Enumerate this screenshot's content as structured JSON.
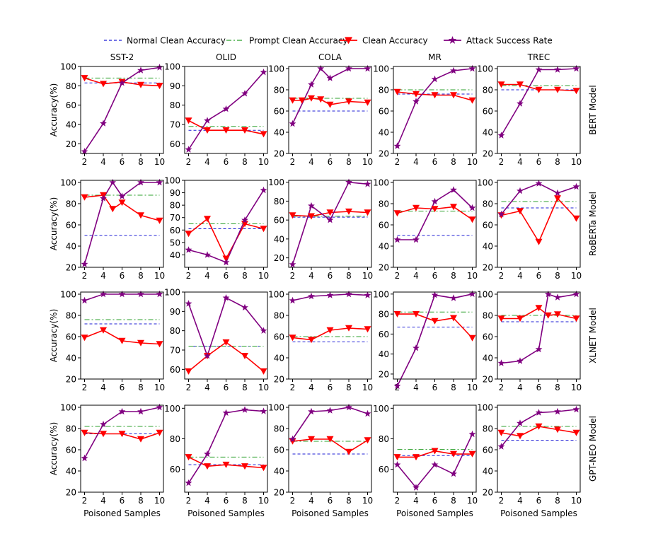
{
  "legend": [
    {
      "label": "Normal Clean Accuracy",
      "key": "normal",
      "color": "#1f1fd6",
      "dash": "4,3"
    },
    {
      "label": "Prompt Clean Accuracy",
      "key": "prompt",
      "color": "#2ca02c",
      "dash": "7,3,2,3"
    },
    {
      "label": "Clean Accuracy",
      "key": "clean",
      "color": "#ff0000",
      "marker": "triangle-down"
    },
    {
      "label": "Attack Success Rate",
      "key": "asr",
      "color": "#800080",
      "marker": "star"
    }
  ],
  "column_titles": [
    "SST-2",
    "OLID",
    "COLA",
    "MR",
    "TREC"
  ],
  "row_labels": [
    "BERT Model",
    "RoBERTa Model",
    "XLNET Model",
    "GPT-NEO Model"
  ],
  "ylabel": "Accuracy(%)",
  "xlabel": "Poisoned Samples",
  "chart_data": [
    {
      "type": "line",
      "model": "BERT Model",
      "dataset": "SST-2",
      "xlim": [
        2,
        10
      ],
      "ylim": [
        10,
        100
      ],
      "yticks": [
        20,
        40,
        60,
        80,
        100
      ],
      "xticks": [
        2,
        4,
        6,
        8,
        10
      ],
      "normal": 83,
      "prompt": 88,
      "clean": {
        "x": [
          2,
          4,
          6,
          8,
          10
        ],
        "y": [
          88,
          82,
          84,
          81,
          80
        ]
      },
      "asr": {
        "x": [
          2,
          4,
          6,
          8,
          10
        ],
        "y": [
          12,
          41,
          83,
          96,
          99
        ]
      }
    },
    {
      "type": "line",
      "model": "BERT Model",
      "dataset": "OLID",
      "xlim": [
        2,
        10
      ],
      "ylim": [
        55,
        100
      ],
      "yticks": [
        60,
        70,
        80,
        90,
        100
      ],
      "xticks": [
        2,
        4,
        6,
        8,
        10
      ],
      "normal": 67,
      "prompt": 69,
      "clean": {
        "x": [
          2,
          4,
          6,
          8,
          10
        ],
        "y": [
          72,
          67,
          67,
          67,
          65
        ]
      },
      "asr": {
        "x": [
          2,
          4,
          6,
          8,
          10
        ],
        "y": [
          57,
          72,
          78,
          86,
          97
        ]
      }
    },
    {
      "type": "line",
      "model": "BERT Model",
      "dataset": "COLA",
      "xlim": [
        2,
        10
      ],
      "ylim": [
        20,
        102
      ],
      "yticks": [
        20,
        40,
        60,
        80,
        100
      ],
      "xticks": [
        2,
        4,
        6,
        8,
        10
      ],
      "normal": 60,
      "prompt": 72,
      "clean": {
        "x": [
          2,
          3,
          4,
          5,
          6,
          8,
          10
        ],
        "y": [
          70,
          70,
          72,
          71,
          66,
          69,
          68
        ]
      },
      "asr": {
        "x": [
          2,
          4,
          5,
          6,
          8,
          10
        ],
        "y": [
          48,
          85,
          100,
          91,
          100,
          100
        ]
      }
    },
    {
      "type": "line",
      "model": "BERT Model",
      "dataset": "MR",
      "xlim": [
        2,
        10
      ],
      "ylim": [
        20,
        102
      ],
      "yticks": [
        20,
        40,
        60,
        80,
        100
      ],
      "xticks": [
        2,
        4,
        6,
        8,
        10
      ],
      "normal": 76,
      "prompt": 80,
      "clean": {
        "x": [
          2,
          4,
          6,
          8,
          10
        ],
        "y": [
          78,
          76,
          75,
          75,
          70
        ]
      },
      "asr": {
        "x": [
          2,
          4,
          6,
          8,
          10
        ],
        "y": [
          27,
          69,
          90,
          98,
          100
        ]
      }
    },
    {
      "type": "line",
      "model": "BERT Model",
      "dataset": "TREC",
      "xlim": [
        2,
        10
      ],
      "ylim": [
        20,
        102
      ],
      "yticks": [
        20,
        40,
        60,
        80,
        100
      ],
      "xticks": [
        2,
        4,
        6,
        8,
        10
      ],
      "normal": 80,
      "prompt": 84,
      "clean": {
        "x": [
          2,
          4,
          6,
          8,
          10
        ],
        "y": [
          85,
          85,
          80,
          80,
          79
        ]
      },
      "asr": {
        "x": [
          2,
          4,
          6,
          8,
          10
        ],
        "y": [
          37,
          67,
          99,
          99,
          100
        ]
      }
    },
    {
      "type": "line",
      "model": "RoBERTa Model",
      "dataset": "SST-2",
      "xlim": [
        2,
        10
      ],
      "ylim": [
        20,
        102
      ],
      "yticks": [
        20,
        40,
        60,
        80,
        100
      ],
      "xticks": [
        2,
        4,
        6,
        8,
        10
      ],
      "normal": 50,
      "prompt": 88,
      "clean": {
        "x": [
          2,
          4,
          5,
          6,
          8,
          10
        ],
        "y": [
          86,
          88,
          75,
          81,
          69,
          64
        ]
      },
      "asr": {
        "x": [
          2,
          4,
          5,
          6,
          8,
          10
        ],
        "y": [
          23,
          85,
          100,
          87,
          100,
          100
        ]
      }
    },
    {
      "type": "line",
      "model": "RoBERTa Model",
      "dataset": "OLID",
      "xlim": [
        2,
        10
      ],
      "ylim": [
        30,
        100
      ],
      "yticks": [
        40,
        50,
        60,
        70,
        80,
        90,
        100
      ],
      "xticks": [
        2,
        4,
        6,
        8,
        10
      ],
      "normal": 61,
      "prompt": 65,
      "clean": {
        "x": [
          2,
          4,
          6,
          8,
          10
        ],
        "y": [
          57,
          69,
          37,
          65,
          61
        ]
      },
      "asr": {
        "x": [
          2,
          4,
          6,
          8,
          10
        ],
        "y": [
          44,
          40,
          34,
          68,
          92
        ]
      }
    },
    {
      "type": "line",
      "model": "RoBERTa Model",
      "dataset": "COLA",
      "xlim": [
        2,
        10
      ],
      "ylim": [
        10,
        102
      ],
      "yticks": [
        20,
        40,
        60,
        80,
        100
      ],
      "xticks": [
        2,
        4,
        6,
        8,
        10
      ],
      "normal": 63,
      "prompt": 64,
      "clean": {
        "x": [
          2,
          4,
          6,
          8,
          10
        ],
        "y": [
          65,
          64,
          68,
          69,
          68
        ]
      },
      "asr": {
        "x": [
          2,
          4,
          6,
          8,
          10
        ],
        "y": [
          13,
          75,
          60,
          100,
          98
        ]
      }
    },
    {
      "type": "line",
      "model": "RoBERTa Model",
      "dataset": "MR",
      "xlim": [
        2,
        10
      ],
      "ylim": [
        20,
        102
      ],
      "yticks": [
        20,
        40,
        60,
        80,
        100
      ],
      "xticks": [
        2,
        4,
        6,
        8,
        10
      ],
      "normal": 50,
      "prompt": 73,
      "clean": {
        "x": [
          2,
          4,
          6,
          8,
          10
        ],
        "y": [
          71,
          76,
          75,
          77,
          65
        ]
      },
      "asr": {
        "x": [
          2,
          4,
          6,
          8,
          10
        ],
        "y": [
          46,
          46,
          82,
          93,
          76
        ]
      }
    },
    {
      "type": "line",
      "model": "RoBERTa Model",
      "dataset": "TREC",
      "xlim": [
        2,
        10
      ],
      "ylim": [
        20,
        102
      ],
      "yticks": [
        20,
        40,
        60,
        80,
        100
      ],
      "xticks": [
        2,
        4,
        6,
        8,
        10
      ],
      "normal": 76,
      "prompt": 82,
      "clean": {
        "x": [
          2,
          4,
          6,
          8,
          10
        ],
        "y": [
          69,
          73,
          44,
          85,
          66
        ]
      },
      "asr": {
        "x": [
          2,
          4,
          6,
          8,
          10
        ],
        "y": [
          70,
          92,
          99,
          90,
          96
        ]
      }
    },
    {
      "type": "line",
      "model": "XLNET Model",
      "dataset": "SST-2",
      "xlim": [
        2,
        10
      ],
      "ylim": [
        20,
        102
      ],
      "yticks": [
        20,
        40,
        60,
        80,
        100
      ],
      "xticks": [
        2,
        4,
        6,
        8,
        10
      ],
      "normal": 72,
      "prompt": 76,
      "clean": {
        "x": [
          2,
          4,
          6,
          8,
          10
        ],
        "y": [
          59,
          66,
          56,
          54,
          53
        ]
      },
      "asr": {
        "x": [
          2,
          4,
          6,
          8,
          10
        ],
        "y": [
          94,
          100,
          100,
          100,
          100
        ]
      }
    },
    {
      "type": "line",
      "model": "XLNET Model",
      "dataset": "OLID",
      "xlim": [
        2,
        10
      ],
      "ylim": [
        55,
        100
      ],
      "yticks": [
        60,
        70,
        80,
        90,
        100
      ],
      "xticks": [
        2,
        4,
        6,
        8,
        10
      ],
      "normal": 72,
      "prompt": 72,
      "clean": {
        "x": [
          2,
          4,
          6,
          8,
          10
        ],
        "y": [
          59,
          67,
          74,
          67,
          59
        ]
      },
      "asr": {
        "x": [
          2,
          4,
          6,
          8,
          10
        ],
        "y": [
          94,
          67,
          97,
          92,
          80
        ]
      }
    },
    {
      "type": "line",
      "model": "XLNET Model",
      "dataset": "COLA",
      "xlim": [
        2,
        10
      ],
      "ylim": [
        20,
        102
      ],
      "yticks": [
        20,
        40,
        60,
        80,
        100
      ],
      "xticks": [
        2,
        4,
        6,
        8,
        10
      ],
      "normal": 55,
      "prompt": 60,
      "clean": {
        "x": [
          2,
          4,
          6,
          8,
          10
        ],
        "y": [
          59,
          57,
          66,
          68,
          67
        ]
      },
      "asr": {
        "x": [
          2,
          4,
          6,
          8,
          10
        ],
        "y": [
          94,
          98,
          99,
          100,
          99
        ]
      }
    },
    {
      "type": "line",
      "model": "XLNET Model",
      "dataset": "MR",
      "xlim": [
        2,
        10
      ],
      "ylim": [
        15,
        102
      ],
      "yticks": [
        20,
        40,
        60,
        80,
        100
      ],
      "xticks": [
        2,
        4,
        6,
        8,
        10
      ],
      "normal": 67,
      "prompt": 82,
      "clean": {
        "x": [
          2,
          4,
          6,
          8,
          10
        ],
        "y": [
          80,
          80,
          73,
          76,
          56
        ]
      },
      "asr": {
        "x": [
          2,
          4,
          6,
          8,
          10
        ],
        "y": [
          8,
          46,
          99,
          96,
          100
        ]
      }
    },
    {
      "type": "line",
      "model": "XLNET Model",
      "dataset": "TREC",
      "xlim": [
        2,
        10
      ],
      "ylim": [
        20,
        102
      ],
      "yticks": [
        20,
        40,
        60,
        80,
        100
      ],
      "xticks": [
        2,
        4,
        6,
        8,
        10
      ],
      "normal": 74,
      "prompt": 80,
      "clean": {
        "x": [
          2,
          4,
          6,
          7,
          8,
          10
        ],
        "y": [
          77,
          77,
          87,
          80,
          81,
          77
        ]
      },
      "asr": {
        "x": [
          2,
          4,
          6,
          7,
          8,
          10
        ],
        "y": [
          35,
          37,
          48,
          100,
          97,
          100
        ]
      }
    },
    {
      "type": "line",
      "model": "GPT-NEO Model",
      "dataset": "SST-2",
      "xlim": [
        2,
        10
      ],
      "ylim": [
        20,
        102
      ],
      "yticks": [
        20,
        40,
        60,
        80,
        100
      ],
      "xticks": [
        2,
        4,
        6,
        8,
        10
      ],
      "normal": 75,
      "prompt": 82,
      "clean": {
        "x": [
          2,
          4,
          6,
          8,
          10
        ],
        "y": [
          76,
          75,
          75,
          70,
          76
        ]
      },
      "asr": {
        "x": [
          2,
          4,
          6,
          8,
          10
        ],
        "y": [
          52,
          84,
          96,
          96,
          100
        ]
      }
    },
    {
      "type": "line",
      "model": "GPT-NEO Model",
      "dataset": "OLID",
      "xlim": [
        2,
        10
      ],
      "ylim": [
        45,
        102
      ],
      "yticks": [
        60,
        80,
        100
      ],
      "xticks": [
        2,
        4,
        6,
        8,
        10
      ],
      "normal": 63,
      "prompt": 68,
      "clean": {
        "x": [
          2,
          4,
          6,
          8,
          10
        ],
        "y": [
          68,
          62,
          63,
          62,
          61
        ]
      },
      "asr": {
        "x": [
          2,
          4,
          6,
          8,
          10
        ],
        "y": [
          51,
          70,
          97,
          99,
          98
        ]
      }
    },
    {
      "type": "line",
      "model": "GPT-NEO Model",
      "dataset": "COLA",
      "xlim": [
        2,
        10
      ],
      "ylim": [
        20,
        102
      ],
      "yticks": [
        20,
        40,
        60,
        80,
        100
      ],
      "xticks": [
        2,
        4,
        6,
        8,
        10
      ],
      "normal": 56,
      "prompt": 68,
      "clean": {
        "x": [
          2,
          4,
          6,
          8,
          10
        ],
        "y": [
          68,
          70,
          70,
          58,
          69
        ]
      },
      "asr": {
        "x": [
          2,
          4,
          6,
          8,
          10
        ],
        "y": [
          70,
          96,
          97,
          100,
          94
        ]
      }
    },
    {
      "type": "line",
      "model": "GPT-NEO Model",
      "dataset": "MR",
      "xlim": [
        2,
        10
      ],
      "ylim": [
        45,
        102
      ],
      "yticks": [
        60,
        80,
        100
      ],
      "xticks": [
        2,
        4,
        6,
        8,
        10
      ],
      "normal": 69,
      "prompt": 73,
      "clean": {
        "x": [
          2,
          4,
          6,
          8,
          10
        ],
        "y": [
          68,
          68,
          72,
          70,
          70
        ]
      },
      "asr": {
        "x": [
          2,
          4,
          6,
          8,
          10
        ],
        "y": [
          63,
          48,
          63,
          57,
          83
        ]
      }
    },
    {
      "type": "line",
      "model": "GPT-NEO Model",
      "dataset": "TREC",
      "xlim": [
        2,
        10
      ],
      "ylim": [
        20,
        102
      ],
      "yticks": [
        20,
        40,
        60,
        80,
        100
      ],
      "xticks": [
        2,
        4,
        6,
        8,
        10
      ],
      "normal": 69,
      "prompt": 82,
      "clean": {
        "x": [
          2,
          4,
          6,
          8,
          10
        ],
        "y": [
          76,
          73,
          82,
          79,
          76
        ]
      },
      "asr": {
        "x": [
          2,
          4,
          6,
          8,
          10
        ],
        "y": [
          63,
          85,
          95,
          96,
          98
        ]
      }
    }
  ]
}
